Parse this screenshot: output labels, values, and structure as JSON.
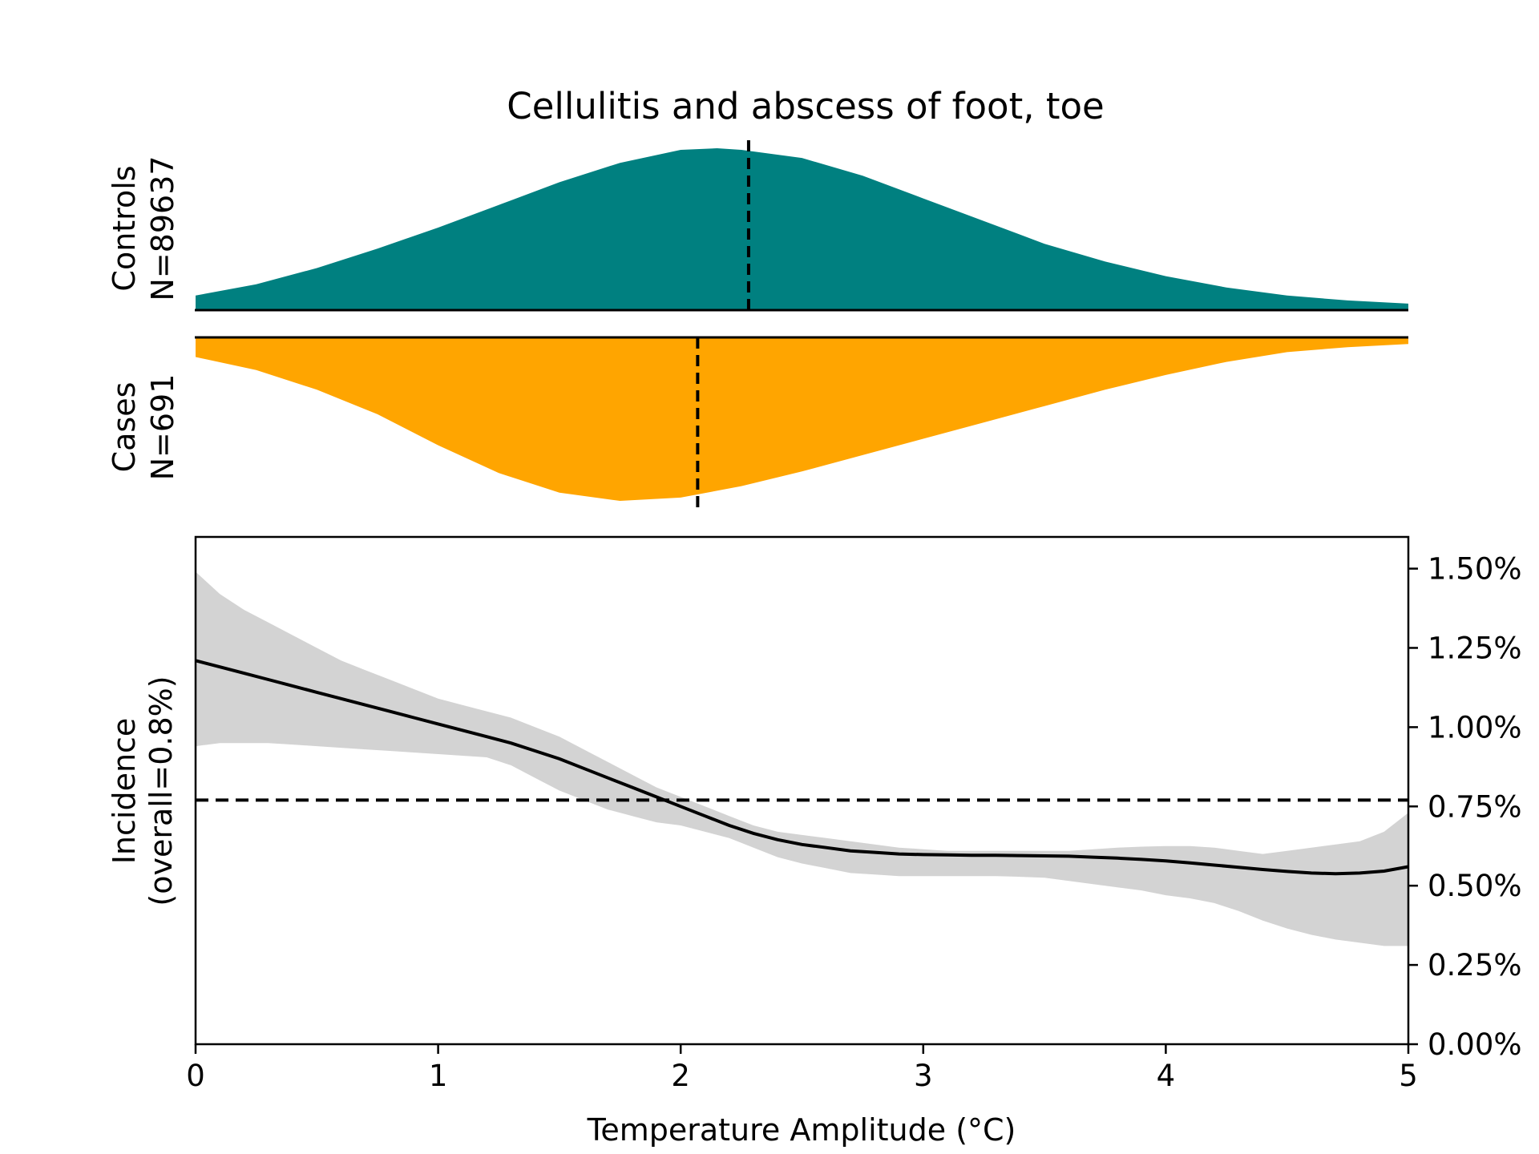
{
  "chart_data": {
    "type": "area",
    "title": "Cellulitis and abscess of foot, toe",
    "colors": {
      "controls": "#008080",
      "cases": "#ffa500",
      "ci_band": "#d3d3d3",
      "line": "#000000"
    },
    "distributions": {
      "controls": {
        "label_line1": "Controls",
        "label_line2": "N=89637",
        "mean": 2.28,
        "x": [
          0,
          0.25,
          0.5,
          0.75,
          1,
          1.25,
          1.5,
          1.75,
          2,
          2.15,
          2.25,
          2.5,
          2.75,
          3,
          3.25,
          3.5,
          3.75,
          4,
          4.25,
          4.5,
          4.75,
          5
        ],
        "density": [
          0.09,
          0.16,
          0.26,
          0.38,
          0.51,
          0.65,
          0.79,
          0.91,
          0.99,
          1.0,
          0.99,
          0.94,
          0.83,
          0.69,
          0.55,
          0.41,
          0.3,
          0.21,
          0.14,
          0.09,
          0.06,
          0.04
        ]
      },
      "cases": {
        "label_line1": "Cases",
        "label_line2": "N=691",
        "mean": 2.07,
        "x": [
          0,
          0.25,
          0.5,
          0.75,
          1,
          1.25,
          1.5,
          1.75,
          2,
          2.25,
          2.5,
          2.75,
          3,
          3.25,
          3.5,
          3.75,
          4,
          4.25,
          4.5,
          4.75,
          5
        ],
        "density": [
          0.12,
          0.2,
          0.32,
          0.47,
          0.66,
          0.83,
          0.95,
          1.0,
          0.98,
          0.91,
          0.82,
          0.72,
          0.62,
          0.52,
          0.42,
          0.32,
          0.23,
          0.15,
          0.09,
          0.06,
          0.04
        ]
      }
    },
    "incidence": {
      "ylabel_line1": "Incidence",
      "ylabel_line2": "(overall=0.8%)",
      "xlabel": "Temperature Amplitude (°C)",
      "overall": 0.77,
      "xlim": [
        0,
        5
      ],
      "ylim": [
        0,
        1.6
      ],
      "x_ticks": [
        0,
        1,
        2,
        3,
        4,
        5
      ],
      "x_tick_labels": [
        "0",
        "1",
        "2",
        "3",
        "4",
        "5"
      ],
      "y_ticks": [
        0,
        0.25,
        0.5,
        0.75,
        1.0,
        1.25,
        1.5
      ],
      "y_tick_labels": [
        "0.00%",
        "0.25%",
        "0.50%",
        "0.75%",
        "1.00%",
        "1.25%",
        "1.50%"
      ],
      "x": [
        0,
        0.1,
        0.2,
        0.3,
        0.4,
        0.5,
        0.6,
        0.7,
        0.8,
        0.9,
        1.0,
        1.1,
        1.2,
        1.3,
        1.4,
        1.5,
        1.6,
        1.7,
        1.8,
        1.9,
        2.0,
        2.1,
        2.2,
        2.3,
        2.4,
        2.5,
        2.6,
        2.7,
        2.8,
        2.9,
        3.0,
        3.1,
        3.2,
        3.3,
        3.4,
        3.5,
        3.6,
        3.7,
        3.8,
        3.9,
        4.0,
        4.1,
        4.2,
        4.3,
        4.4,
        4.5,
        4.6,
        4.7,
        4.8,
        4.9,
        5.0
      ],
      "y": [
        1.21,
        1.19,
        1.17,
        1.15,
        1.13,
        1.11,
        1.09,
        1.07,
        1.05,
        1.03,
        1.01,
        0.99,
        0.97,
        0.95,
        0.925,
        0.9,
        0.87,
        0.84,
        0.81,
        0.78,
        0.75,
        0.72,
        0.69,
        0.665,
        0.645,
        0.63,
        0.62,
        0.61,
        0.605,
        0.6,
        0.598,
        0.597,
        0.596,
        0.596,
        0.595,
        0.594,
        0.593,
        0.59,
        0.587,
        0.583,
        0.578,
        0.572,
        0.565,
        0.558,
        0.551,
        0.545,
        0.54,
        0.538,
        0.54,
        0.546,
        0.56
      ],
      "ci_upper": [
        1.49,
        1.42,
        1.37,
        1.33,
        1.29,
        1.25,
        1.21,
        1.18,
        1.15,
        1.12,
        1.09,
        1.07,
        1.05,
        1.03,
        1.0,
        0.97,
        0.93,
        0.89,
        0.85,
        0.81,
        0.78,
        0.75,
        0.72,
        0.69,
        0.67,
        0.66,
        0.65,
        0.64,
        0.63,
        0.62,
        0.615,
        0.61,
        0.61,
        0.61,
        0.61,
        0.61,
        0.61,
        0.615,
        0.62,
        0.623,
        0.625,
        0.625,
        0.62,
        0.61,
        0.6,
        0.61,
        0.62,
        0.63,
        0.64,
        0.67,
        0.73
      ],
      "ci_lower": [
        0.94,
        0.95,
        0.95,
        0.95,
        0.945,
        0.94,
        0.935,
        0.93,
        0.925,
        0.92,
        0.915,
        0.91,
        0.905,
        0.88,
        0.84,
        0.8,
        0.77,
        0.74,
        0.72,
        0.7,
        0.69,
        0.67,
        0.65,
        0.62,
        0.59,
        0.57,
        0.555,
        0.54,
        0.535,
        0.53,
        0.53,
        0.53,
        0.53,
        0.53,
        0.528,
        0.525,
        0.515,
        0.505,
        0.495,
        0.485,
        0.47,
        0.46,
        0.445,
        0.42,
        0.39,
        0.365,
        0.345,
        0.33,
        0.32,
        0.31,
        0.31
      ]
    }
  }
}
